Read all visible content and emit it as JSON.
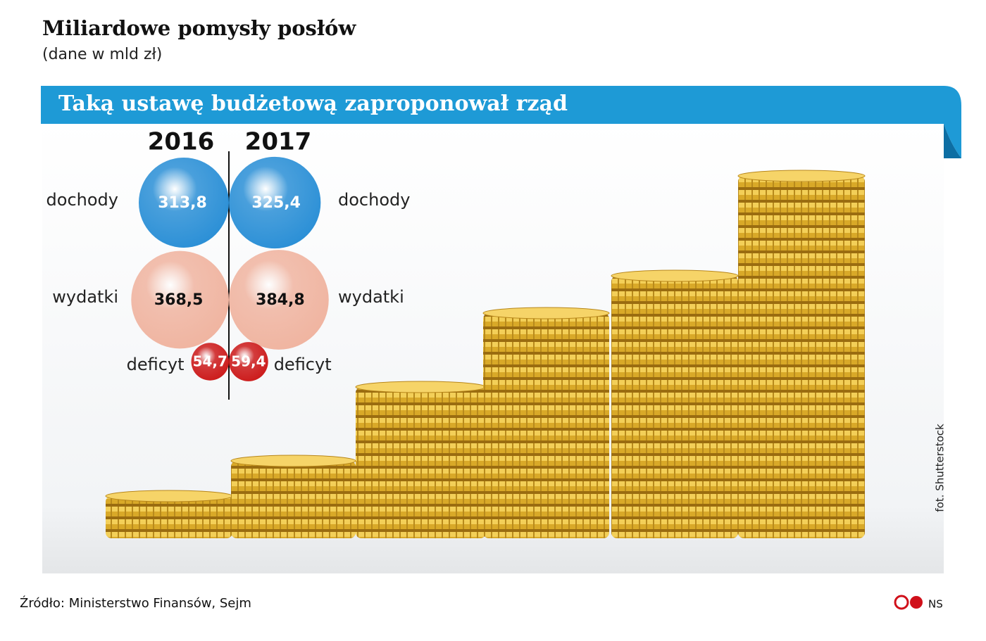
{
  "chart_data": {
    "type": "bubble",
    "title": "Miliardowe pomysły posłów",
    "subtitle": "(dane w mld zł)",
    "categories": [
      "2016",
      "2017"
    ],
    "series": [
      {
        "name": "dochody",
        "color": "#2a8fd6",
        "values": [
          313.8,
          325.4
        ],
        "value_labels": [
          "313,8",
          "325,4"
        ]
      },
      {
        "name": "wydatki",
        "color": "#f0b4a0",
        "values": [
          368.5,
          384.8
        ],
        "value_labels": [
          "368,5",
          "384,8"
        ]
      },
      {
        "name": "deficyt",
        "color": "#cc1a1a",
        "values": [
          54.7,
          59.4
        ],
        "value_labels": [
          "54,7",
          "59,4"
        ]
      }
    ]
  },
  "header": {
    "banner": "Taką ustawę budżetową zaproponował rząd"
  },
  "footer": {
    "source": "Źródło: Ministerstwo Finansów, Sejm",
    "credit": "fot. Shutterstock",
    "logo": "NS"
  }
}
